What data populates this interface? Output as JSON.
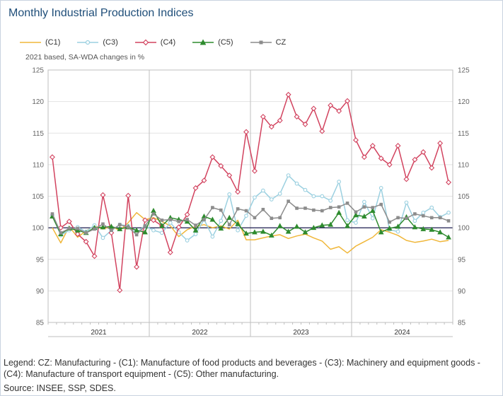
{
  "title": "Monthly Industrial Production Indices",
  "subtitle": "2021 based, SA-WDA changes in %",
  "legend": [
    {
      "label": "(C1)",
      "color": "#f0b73a",
      "marker": "none"
    },
    {
      "label": "(C3)",
      "color": "#9bd0e0",
      "marker": "circle"
    },
    {
      "label": "(C4)",
      "color": "#d2435f",
      "marker": "diamond"
    },
    {
      "label": "(C5)",
      "color": "#2e8b2e",
      "marker": "triangle"
    },
    {
      "label": "CZ",
      "color": "#8c8c8c",
      "marker": "square"
    }
  ],
  "footnote": "Legend: CZ: Manufacturing - (C1): Manufacture of food products and beverages - (C3): Machinery and equipment goods - (C4): Manufacture of transport equipment - (C5): Other manufacturing.",
  "source": "Source: INSEE, SSP, SDES.",
  "chart_data": {
    "type": "line",
    "ylim": [
      85,
      125
    ],
    "yticks": [
      85,
      90,
      95,
      100,
      105,
      110,
      115,
      120,
      125
    ],
    "year_labels": [
      "2021",
      "2022",
      "2023",
      "2024"
    ],
    "months_start": "2021-01",
    "n_points": 48,
    "reference_line": 100,
    "series": [
      {
        "name": "(C1)",
        "color": "#f0b73a",
        "marker": "none",
        "values": [
          100.0,
          97.6,
          100.2,
          98.5,
          99.5,
          100.3,
          99.8,
          100.2,
          99.6,
          100.8,
          102.4,
          101.3,
          101.6,
          101.0,
          100.3,
          98.6,
          99.7,
          100.2,
          100.5,
          100.0,
          100.3,
          99.8,
          101.2,
          98.1,
          98.1,
          98.4,
          98.7,
          98.9,
          98.3,
          98.7,
          99.0,
          98.4,
          97.9,
          96.6,
          97.0,
          96.0,
          97.1,
          97.8,
          98.5,
          99.7,
          99.3,
          98.8,
          98.0,
          97.7,
          97.9,
          98.2,
          97.8,
          98.0
        ]
      },
      {
        "name": "(C3)",
        "color": "#9bd0e0",
        "marker": "circle",
        "values": [
          102.0,
          98.8,
          99.6,
          100.1,
          99.4,
          100.4,
          98.4,
          99.6,
          100.5,
          100.3,
          99.3,
          100.3,
          99.6,
          99.2,
          100.8,
          99.3,
          98.0,
          99.0,
          101.3,
          98.6,
          101.1,
          105.3,
          99.6,
          101.9,
          104.8,
          105.9,
          104.5,
          105.4,
          108.3,
          107.0,
          106.0,
          105.0,
          105.0,
          104.3,
          107.3,
          101.2,
          100.8,
          104.1,
          101.5,
          106.3,
          99.7,
          99.4,
          104.0,
          101.1,
          102.4,
          103.2,
          101.7,
          102.4
        ]
      },
      {
        "name": "(C4)",
        "color": "#d2435f",
        "marker": "diamond",
        "values": [
          111.2,
          100.0,
          101.0,
          99.0,
          97.8,
          95.5,
          105.2,
          99.2,
          90.1,
          105.1,
          93.8,
          101.2,
          101.2,
          100.3,
          96.1,
          100.1,
          102.1,
          106.3,
          107.5,
          111.2,
          109.8,
          108.3,
          105.7,
          115.2,
          109.0,
          117.6,
          116.0,
          117.0,
          121.1,
          117.6,
          116.4,
          118.9,
          115.3,
          119.4,
          118.5,
          120.1,
          113.9,
          111.2,
          113.0,
          111.0,
          110.0,
          113.0,
          107.7,
          110.8,
          112.0,
          109.5,
          113.4,
          107.2
        ]
      },
      {
        "name": "(C5)",
        "color": "#2e8b2e",
        "marker": "triangle",
        "values": [
          101.8,
          99.0,
          99.9,
          99.6,
          99.2,
          100.0,
          100.1,
          100.2,
          99.8,
          100.1,
          99.6,
          99.3,
          102.7,
          100.3,
          101.6,
          101.3,
          101.0,
          99.6,
          101.8,
          101.3,
          99.9,
          101.6,
          100.6,
          99.1,
          99.3,
          99.4,
          98.8,
          100.3,
          99.4,
          100.2,
          99.3,
          100.0,
          100.4,
          100.5,
          102.4,
          100.3,
          102.0,
          101.8,
          102.7,
          99.3,
          99.9,
          100.2,
          101.7,
          100.1,
          99.8,
          99.7,
          99.3,
          98.5
        ]
      },
      {
        "name": "CZ",
        "color": "#8c8c8c",
        "marker": "square",
        "values": [
          102.2,
          99.2,
          99.9,
          99.9,
          99.2,
          99.8,
          100.6,
          99.6,
          100.5,
          100.1,
          98.9,
          100.3,
          102.2,
          101.2,
          101.3,
          101.0,
          101.3,
          100.4,
          101.3,
          103.2,
          102.8,
          100.5,
          103.0,
          102.7,
          101.6,
          102.9,
          101.5,
          101.6,
          104.2,
          103.1,
          103.1,
          102.8,
          102.7,
          103.2,
          103.3,
          103.9,
          102.5,
          103.3,
          103.2,
          103.7,
          100.9,
          101.6,
          101.5,
          102.2,
          101.9,
          101.6,
          101.6,
          101.1
        ]
      }
    ]
  }
}
